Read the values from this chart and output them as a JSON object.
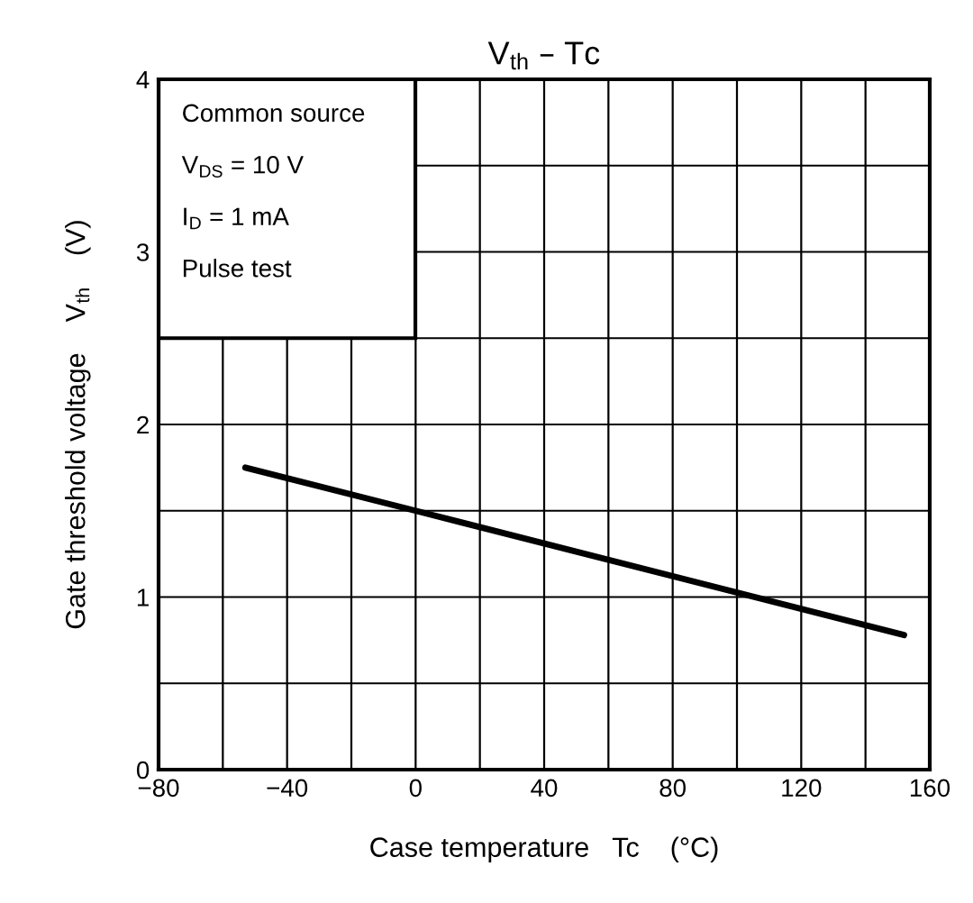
{
  "chart_data": {
    "type": "line",
    "title": "V$_{th}$ – Tc",
    "xlabel": "Case temperature   Tc    (°C)",
    "ylabel": "Gate threshold voltage    V$_{th}$    (V)",
    "annotations": [
      "Common source",
      "V$_{DS}$ = 10 V",
      "I$_{D}$ = 1 mA",
      "Pulse test"
    ],
    "x": [
      -53,
      0,
      152
    ],
    "series": [
      {
        "color": "#000000",
        "values": [
          1.75,
          1.5,
          0.78
        ]
      }
    ],
    "xlim": [
      -80,
      160
    ],
    "ylim": [
      0,
      4
    ],
    "xticks": [
      -80,
      {
        "value": -60,
        "label": null
      },
      -40,
      {
        "value": -20,
        "label": null
      },
      0,
      {
        "value": 20,
        "label": null
      },
      40,
      {
        "value": 60,
        "label": null
      },
      80,
      {
        "value": 100,
        "label": null
      },
      120,
      {
        "value": 140,
        "label": null
      },
      160
    ],
    "yticks": [
      0,
      {
        "value": 0.5,
        "label": null
      },
      1,
      {
        "value": 1.5,
        "label": null
      },
      2,
      {
        "value": 2.5,
        "label": null
      },
      3,
      {
        "value": 3.5,
        "label": null
      },
      4
    ],
    "grid": true,
    "marker": "none",
    "line_style": "solid"
  }
}
